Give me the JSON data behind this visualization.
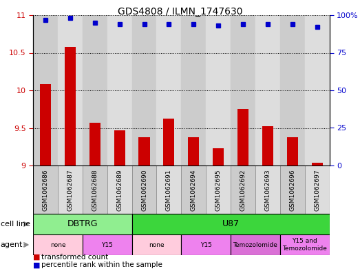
{
  "title": "GDS4808 / ILMN_1747630",
  "samples": [
    "GSM1062686",
    "GSM1062687",
    "GSM1062688",
    "GSM1062689",
    "GSM1062690",
    "GSM1062691",
    "GSM1062694",
    "GSM1062695",
    "GSM1062692",
    "GSM1062693",
    "GSM1062696",
    "GSM1062697"
  ],
  "transformed_count": [
    10.08,
    10.58,
    9.57,
    9.47,
    9.38,
    9.62,
    9.38,
    9.23,
    9.75,
    9.52,
    9.38,
    9.04
  ],
  "percentile_rank": [
    97,
    98,
    95,
    94,
    94,
    94,
    94,
    93,
    94,
    94,
    94,
    92
  ],
  "ylim_left": [
    9,
    11
  ],
  "ylim_right": [
    0,
    100
  ],
  "yticks_left": [
    9,
    9.5,
    10,
    10.5,
    11
  ],
  "yticks_right": [
    0,
    25,
    50,
    75,
    100
  ],
  "bar_color": "#cc0000",
  "dot_color": "#0000cc",
  "cell_line_groups": [
    {
      "label": "DBTRG",
      "start": 0,
      "end": 3,
      "color": "#90ee90"
    },
    {
      "label": "U87",
      "start": 4,
      "end": 11,
      "color": "#3cd63c"
    }
  ],
  "agent_groups": [
    {
      "label": "none",
      "start": 0,
      "end": 1,
      "color": "#ffccdd"
    },
    {
      "label": "Y15",
      "start": 2,
      "end": 3,
      "color": "#ee82ee"
    },
    {
      "label": "none",
      "start": 4,
      "end": 5,
      "color": "#ffccdd"
    },
    {
      "label": "Y15",
      "start": 6,
      "end": 7,
      "color": "#ee82ee"
    },
    {
      "label": "Temozolomide",
      "start": 8,
      "end": 9,
      "color": "#da70d6"
    },
    {
      "label": "Y15 and\nTemozolomide",
      "start": 10,
      "end": 11,
      "color": "#ee82ee"
    }
  ],
  "legend_items": [
    {
      "label": "transformed count",
      "color": "#cc0000"
    },
    {
      "label": "percentile rank within the sample",
      "color": "#0000cc"
    }
  ],
  "background_color": "#ffffff",
  "grid_color": "#000000",
  "left_tick_color": "#cc0000",
  "right_tick_color": "#0000cc",
  "col_bg_even": "#cccccc",
  "col_bg_odd": "#dddddd"
}
